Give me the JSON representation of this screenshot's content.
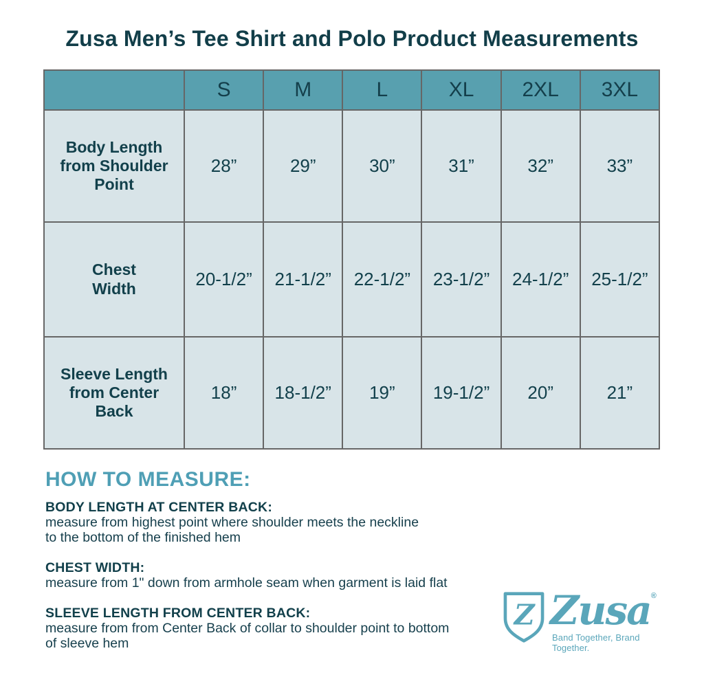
{
  "title": "Zusa Men’s Tee Shirt and Polo Product Measurements",
  "table": {
    "sizes": [
      "S",
      "M",
      "L",
      "XL",
      "2XL",
      "3XL"
    ],
    "rows": [
      {
        "label": "Body Length from Shoulder Point",
        "label_lines": [
          "Body Length",
          "from Shoulder",
          "Point"
        ],
        "values": [
          "28”",
          "29”",
          "30”",
          "31”",
          "32”",
          "33”"
        ]
      },
      {
        "label": "Chest Width",
        "label_lines": [
          "Chest",
          "Width"
        ],
        "values": [
          "20-1/2”",
          "21-1/2”",
          "22-1/2”",
          "23-1/2”",
          "24-1/2”",
          "25-1/2”"
        ]
      },
      {
        "label": "Sleeve Length from Center Back",
        "label_lines": [
          "Sleeve Length",
          "from Center",
          "Back"
        ],
        "values": [
          "18”",
          "18-1/2”",
          "19”",
          "19-1/2”",
          "20”",
          "21”"
        ]
      }
    ]
  },
  "chart_data": {
    "type": "table",
    "columns": [
      "",
      "S",
      "M",
      "L",
      "XL",
      "2XL",
      "3XL"
    ],
    "rows": [
      [
        "Body Length from Shoulder Point",
        "28”",
        "29”",
        "30”",
        "31”",
        "32”",
        "33”"
      ],
      [
        "Chest Width",
        "20-1/2”",
        "21-1/2”",
        "22-1/2”",
        "23-1/2”",
        "24-1/2”",
        "25-1/2”"
      ],
      [
        "Sleeve Length from Center Back",
        "18”",
        "18-1/2”",
        "19”",
        "19-1/2”",
        "20”",
        "21”"
      ]
    ],
    "title": "Zusa Men’s Tee Shirt and Polo Product Measurements"
  },
  "how_to_measure": {
    "heading": "HOW TO MEASURE:",
    "items": [
      {
        "term": "BODY LENGTH AT CENTER BACK:",
        "lines": [
          "measure from highest point where shoulder meets the neckline",
          "to the bottom of the finished hem"
        ]
      },
      {
        "term": "CHEST WIDTH:",
        "lines": [
          "measure from 1\" down from armhole seam when garment is laid flat"
        ]
      },
      {
        "term": "SLEEVE LENGTH FROM CENTER BACK:",
        "lines": [
          "measure from from Center Back of collar to shoulder point to bottom",
          "of sleeve hem"
        ]
      }
    ]
  },
  "logo": {
    "name": "Zusa",
    "registered_mark": "®",
    "tagline": "Band Together, Brand Together.",
    "shield_letter": "Z"
  },
  "colors": {
    "header_background": "#58A0AF",
    "cell_background": "#D8E4E8",
    "dark_teal_text": "#12404B",
    "accent_teal": "#4F9FB5",
    "logo_teal": "#5AA6BA",
    "table_border": "#666666"
  }
}
